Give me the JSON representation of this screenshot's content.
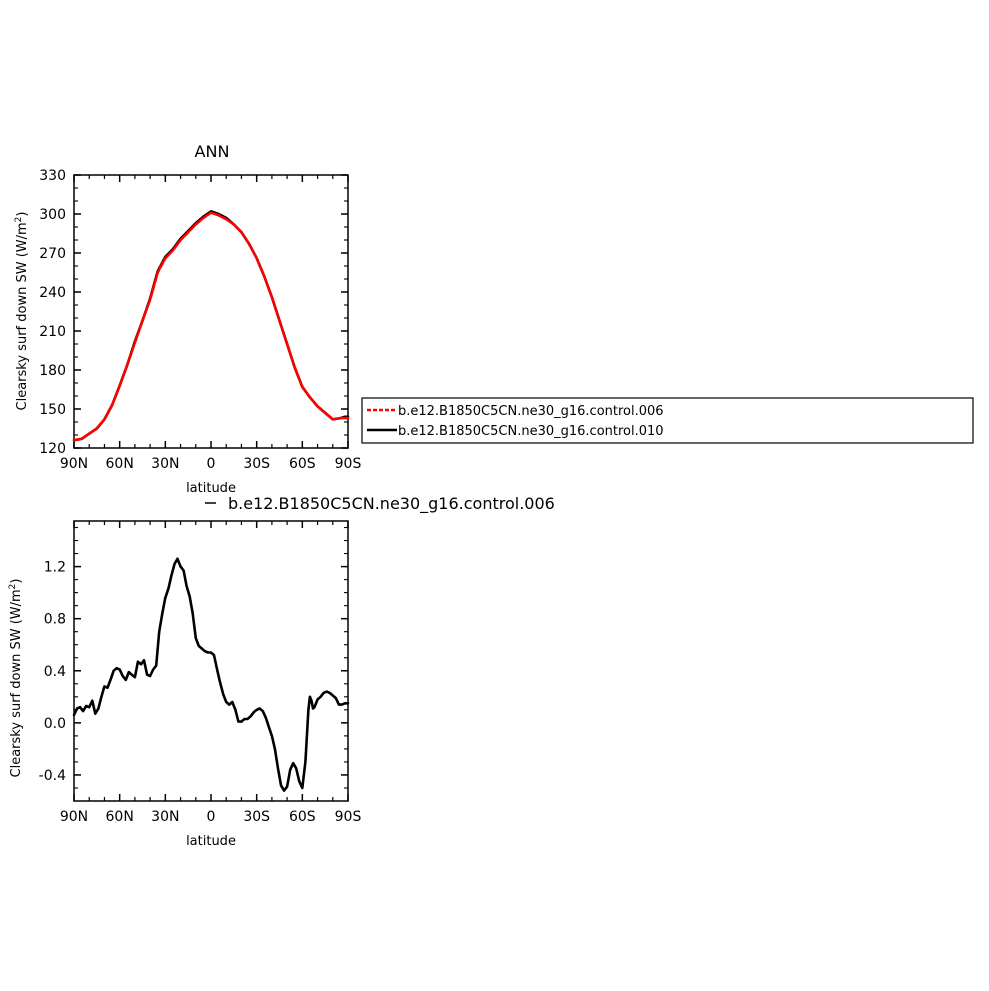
{
  "chart_data": [
    {
      "type": "line",
      "title": "ANN",
      "xlabel": "latitude",
      "ylabel": "Clearsky surf down SW (W/m",
      "ylabel_sup": "2",
      "ylabel_end": ")",
      "xlim": [
        90,
        -90
      ],
      "ylim": [
        120,
        330
      ],
      "xticks": [
        {
          "v": 90,
          "label": "90N"
        },
        {
          "v": 60,
          "label": "60N"
        },
        {
          "v": 30,
          "label": "30N"
        },
        {
          "v": 0,
          "label": "0"
        },
        {
          "v": -30,
          "label": "30S"
        },
        {
          "v": -60,
          "label": "60S"
        },
        {
          "v": -90,
          "label": "90S"
        }
      ],
      "yticks": [
        120,
        150,
        180,
        210,
        240,
        270,
        300,
        330
      ],
      "series": [
        {
          "name": "b.e12.B1850C5CN.ne30_g16.control.006",
          "color": "#ff0000",
          "dash": true,
          "x": [
            90,
            85,
            80,
            75,
            70,
            65,
            60,
            55,
            50,
            45,
            40,
            35,
            30,
            25,
            20,
            15,
            10,
            5,
            0,
            -5,
            -10,
            -15,
            -20,
            -25,
            -30,
            -35,
            -40,
            -45,
            -50,
            -55,
            -60,
            -65,
            -70,
            -75,
            -80,
            -85,
            -88,
            -90
          ],
          "y": [
            126,
            127,
            131,
            135,
            142,
            153,
            168,
            184,
            201,
            218,
            234,
            255,
            266,
            272,
            280,
            286,
            292,
            297,
            301,
            299,
            296,
            292,
            286,
            277,
            266,
            252,
            236,
            218,
            200,
            182,
            167,
            159,
            152,
            147,
            142,
            143,
            143,
            143
          ]
        },
        {
          "name": "b.e12.B1850C5CN.ne30_g16.control.010",
          "color": "#000000",
          "dash": false,
          "x": [
            90,
            85,
            80,
            75,
            70,
            65,
            60,
            55,
            50,
            45,
            40,
            35,
            30,
            25,
            20,
            15,
            10,
            5,
            0,
            -5,
            -10,
            -15,
            -20,
            -25,
            -30,
            -35,
            -40,
            -45,
            -50,
            -55,
            -60,
            -65,
            -70,
            -75,
            -80,
            -85,
            -88,
            -90
          ],
          "y": [
            126,
            127,
            131,
            135,
            142,
            153,
            168,
            184,
            202,
            218,
            235,
            256,
            267,
            273,
            281,
            287,
            293,
            298,
            302,
            300,
            297,
            292,
            286,
            277,
            266,
            252,
            236,
            218,
            200,
            182,
            167,
            159,
            152,
            147,
            142,
            143,
            144,
            144
          ]
        }
      ],
      "legend": "right"
    },
    {
      "type": "line",
      "title": "b.e12.B1850C5CN.ne30_g16.control.006",
      "xlabel": "latitude",
      "ylabel": "Clearsky surf down SW (W/m",
      "ylabel_sup": "2",
      "ylabel_end": ")",
      "xlim": [
        90,
        -90
      ],
      "ylim": [
        -0.6,
        1.55
      ],
      "xticks": [
        {
          "v": 90,
          "label": "90N"
        },
        {
          "v": 60,
          "label": "60N"
        },
        {
          "v": 30,
          "label": "30N"
        },
        {
          "v": 0,
          "label": "0"
        },
        {
          "v": -30,
          "label": "30S"
        },
        {
          "v": -60,
          "label": "60S"
        },
        {
          "v": -90,
          "label": "90S"
        }
      ],
      "yticks": [
        {
          "v": -0.4,
          "label": "-0.4"
        },
        {
          "v": 0.0,
          "label": "0.0"
        },
        {
          "v": 0.4,
          "label": "0.4"
        },
        {
          "v": 0.8,
          "label": "0.8"
        },
        {
          "v": 1.2,
          "label": "1.2"
        }
      ],
      "series": [
        {
          "color": "#000000",
          "x": [
            90,
            88,
            86,
            84,
            82,
            80,
            78,
            76,
            74,
            72,
            70,
            68,
            66,
            64,
            62,
            60,
            58,
            56,
            54,
            52,
            50,
            48,
            46,
            44,
            42,
            40,
            38,
            36,
            34,
            32,
            30,
            28,
            26,
            24,
            22,
            20,
            18,
            16,
            14,
            12,
            10,
            8,
            6,
            4,
            2,
            0,
            -2,
            -4,
            -6,
            -8,
            -10,
            -12,
            -14,
            -16,
            -18,
            -20,
            -22,
            -24,
            -26,
            -28,
            -30,
            -32,
            -34,
            -36,
            -38,
            -40,
            -42,
            -44,
            -46,
            -48,
            -50,
            -52,
            -54,
            -56,
            -58,
            -60,
            -62,
            -63,
            -64,
            -65,
            -66,
            -67,
            -68,
            -70,
            -72,
            -74,
            -76,
            -78,
            -80,
            -82,
            -84,
            -86,
            -88,
            -90
          ],
          "y": [
            0.06,
            0.11,
            0.12,
            0.09,
            0.13,
            0.12,
            0.17,
            0.07,
            0.11,
            0.2,
            0.28,
            0.27,
            0.33,
            0.4,
            0.42,
            0.41,
            0.36,
            0.33,
            0.39,
            0.37,
            0.35,
            0.47,
            0.45,
            0.48,
            0.37,
            0.36,
            0.41,
            0.44,
            0.7,
            0.84,
            0.96,
            1.03,
            1.13,
            1.22,
            1.26,
            1.2,
            1.17,
            1.05,
            0.97,
            0.84,
            0.65,
            0.59,
            0.57,
            0.55,
            0.54,
            0.54,
            0.52,
            0.41,
            0.31,
            0.22,
            0.16,
            0.14,
            0.16,
            0.1,
            0.01,
            0.01,
            0.03,
            0.03,
            0.05,
            0.08,
            0.1,
            0.11,
            0.09,
            0.04,
            -0.03,
            -0.1,
            -0.2,
            -0.35,
            -0.48,
            -0.52,
            -0.49,
            -0.36,
            -0.31,
            -0.35,
            -0.45,
            -0.5,
            -0.3,
            -0.1,
            0.1,
            0.2,
            0.17,
            0.11,
            0.12,
            0.18,
            0.2,
            0.23,
            0.24,
            0.23,
            0.21,
            0.19,
            0.14,
            0.14,
            0.15,
            0.15
          ]
        }
      ]
    }
  ]
}
